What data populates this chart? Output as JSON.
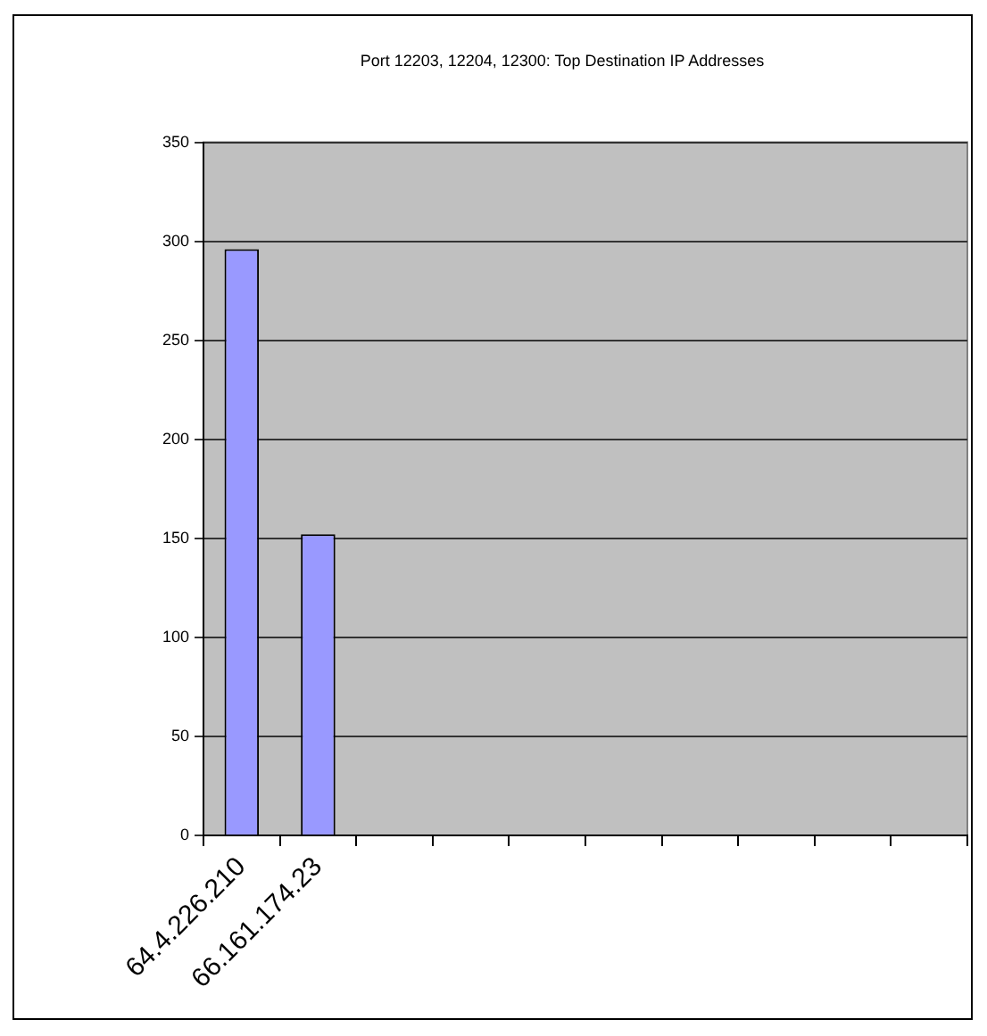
{
  "chart_data": {
    "type": "bar",
    "title": "Port 12203, 12204, 12300: Top Destination IP Addresses",
    "categories": [
      "64.4.226.210",
      "66.161.174.23",
      null,
      null,
      null,
      null,
      null,
      null,
      null,
      null
    ],
    "values": [
      296,
      152,
      null,
      null,
      null,
      null,
      null,
      null,
      null,
      null
    ],
    "color": "#9999ff",
    "ylim": [
      0,
      350
    ],
    "yticks": [
      0,
      50,
      100,
      150,
      200,
      250,
      300,
      350
    ],
    "grid": "y",
    "legend": false
  }
}
